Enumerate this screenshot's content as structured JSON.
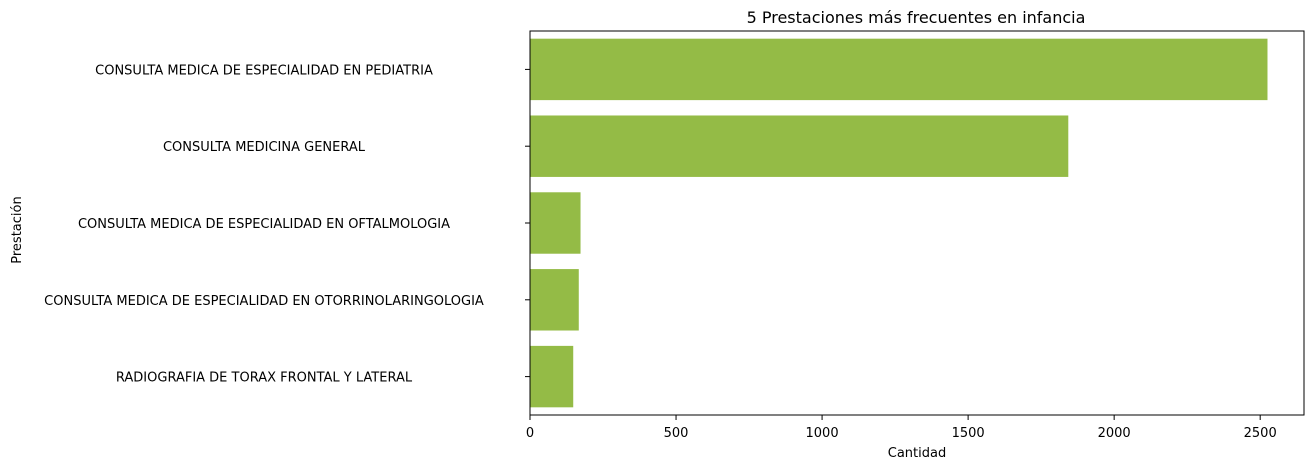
{
  "chart_data": {
    "type": "bar",
    "orientation": "horizontal",
    "title": "5 Prestaciones más frecuentes en infancia",
    "xlabel": "Cantidad",
    "ylabel": "Prestación",
    "categories": [
      "CONSULTA MEDICA DE ESPECIALIDAD EN PEDIATRIA",
      "CONSULTA MEDICINA GENERAL",
      "CONSULTA MEDICA DE ESPECIALIDAD EN OFTALMOLOGIA",
      "CONSULTA MEDICA DE ESPECIALIDAD EN OTORRINOLARINGOLOGIA",
      "RADIOGRAFIA DE TORAX FRONTAL Y LATERAL"
    ],
    "values": [
      2525,
      1843,
      173,
      167,
      148
    ],
    "xlim": [
      0,
      2650
    ],
    "xticks": [
      0,
      500,
      1000,
      1500,
      2000,
      2500
    ],
    "bar_color": "#94bb46",
    "grid": false,
    "legend": "none"
  }
}
